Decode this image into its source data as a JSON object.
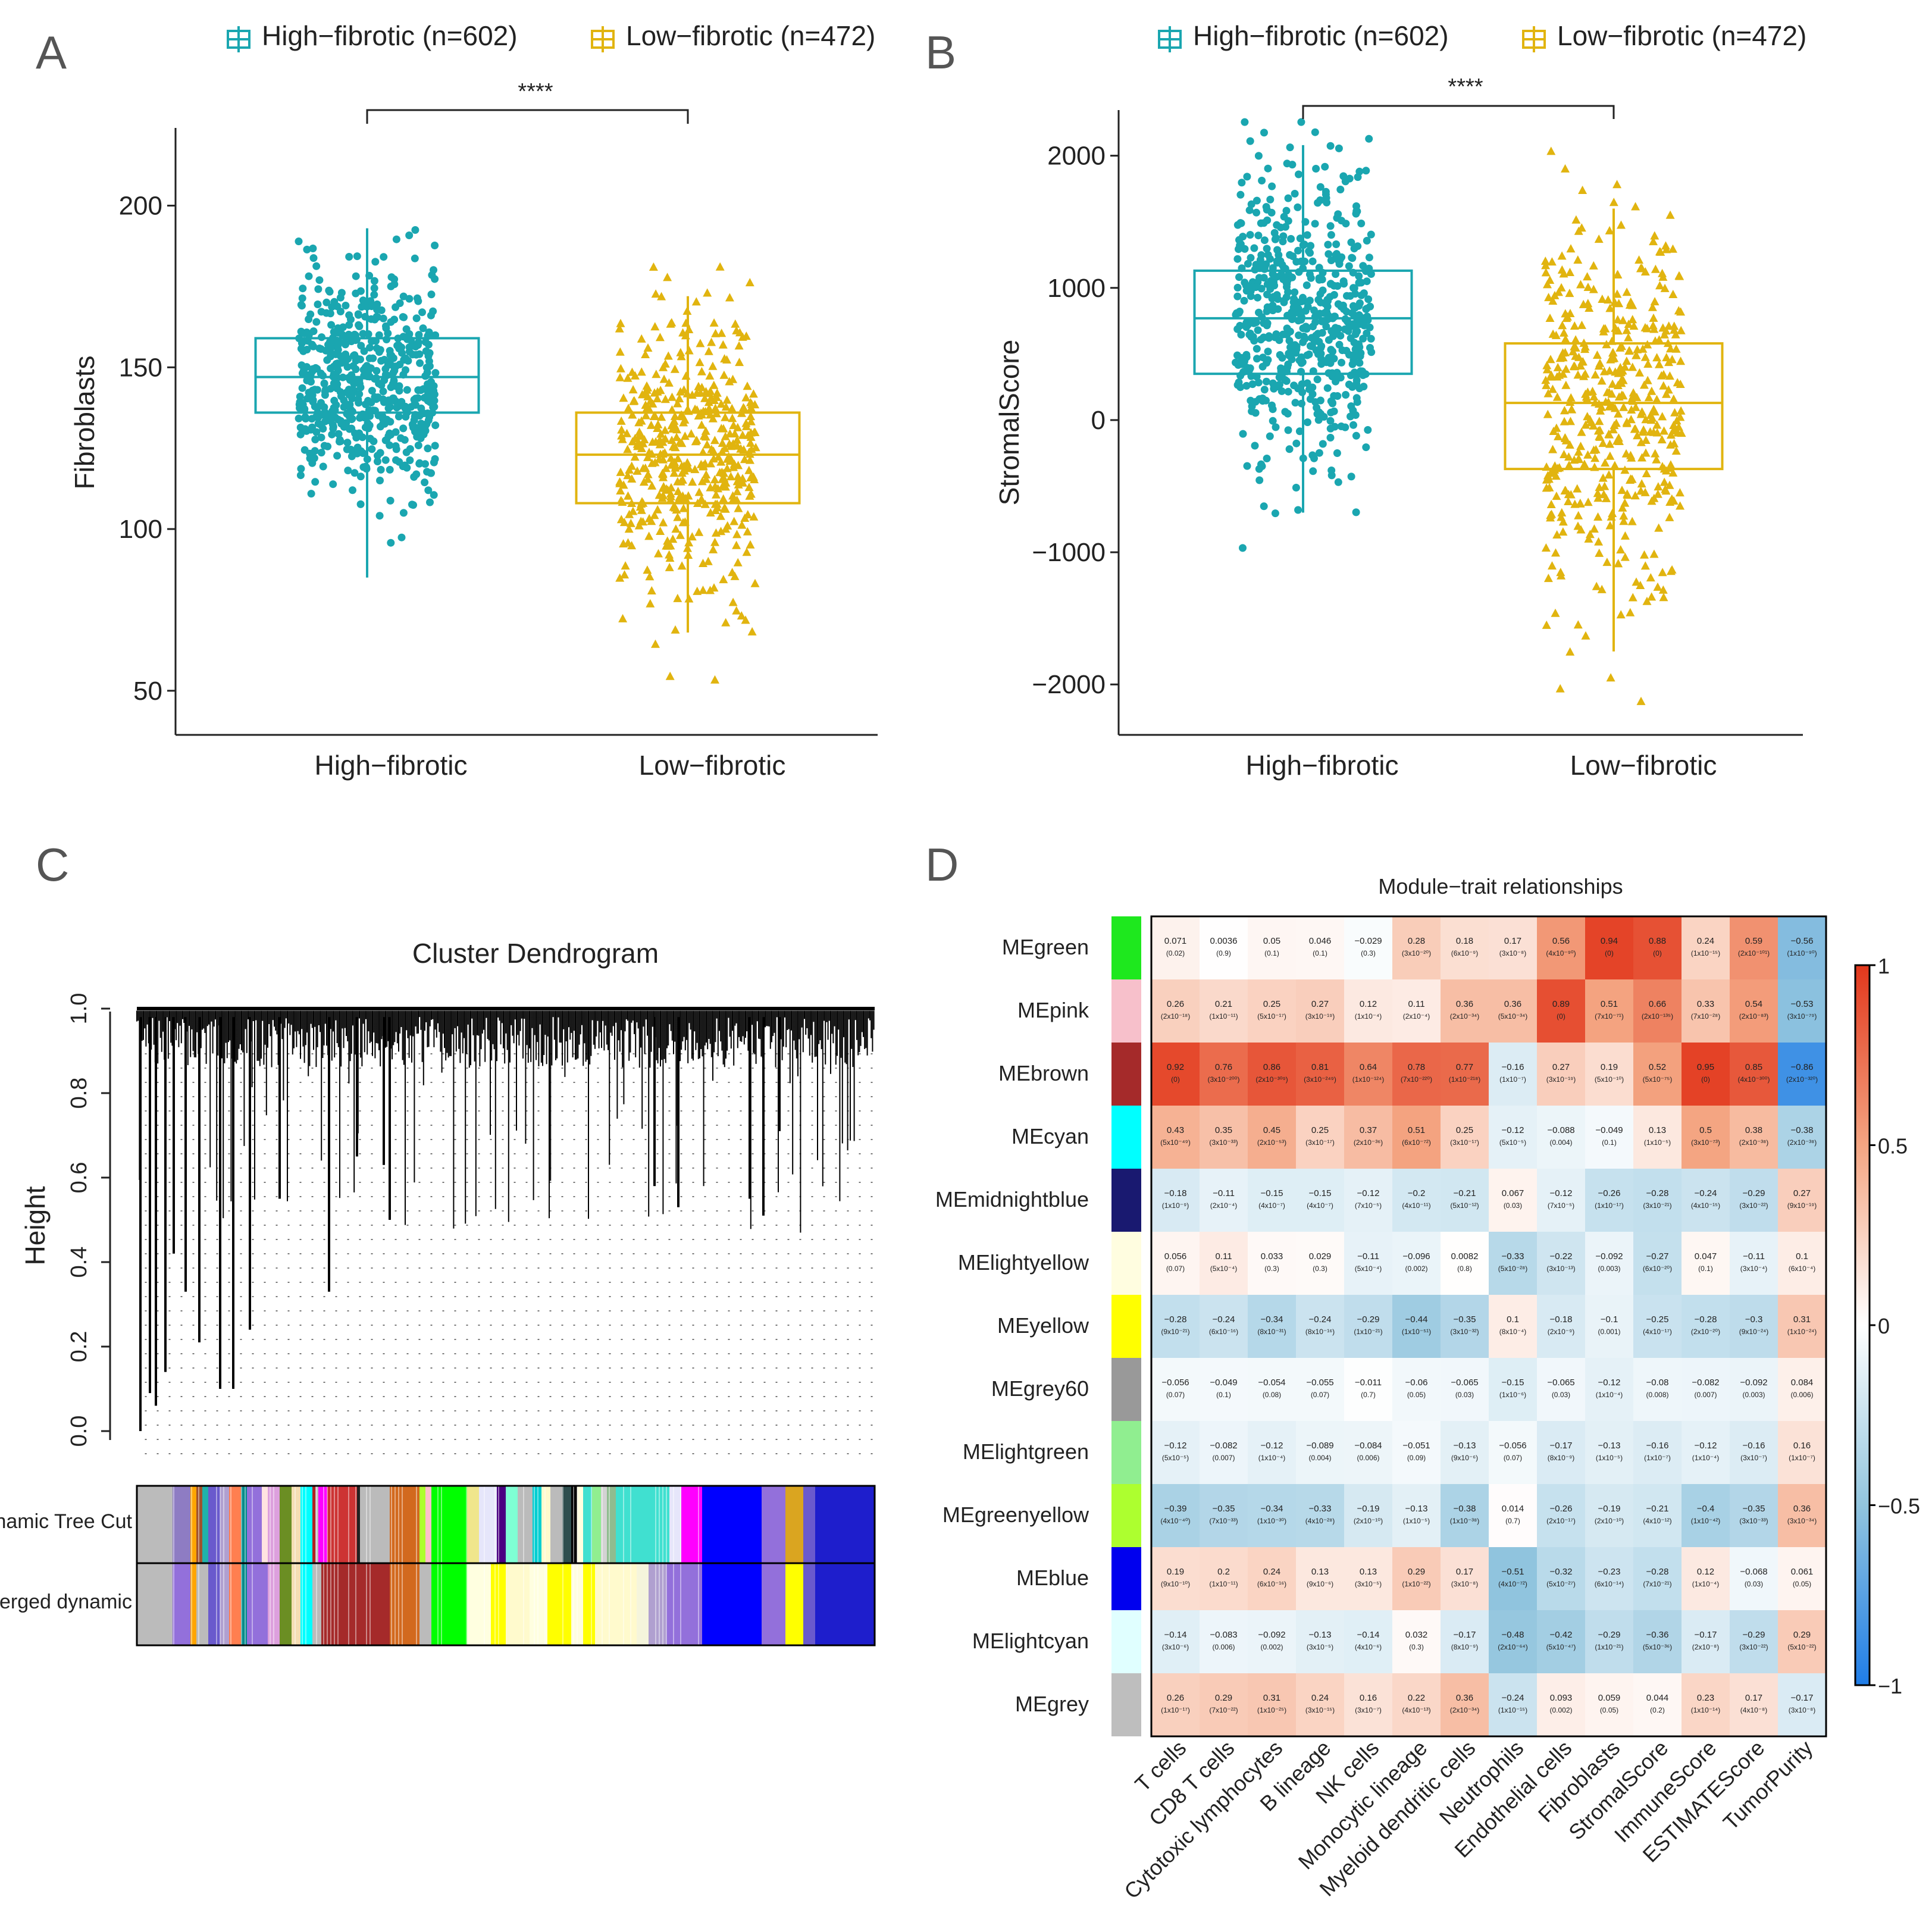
{
  "panel_letters": [
    "A",
    "B",
    "C",
    "D"
  ],
  "colors": {
    "high": "#1aa6b0",
    "low": "#e1b40f",
    "high_legend": "#1aa6b0",
    "low_legend": "#e1b40f"
  },
  "chart_data": [
    {
      "id": "A",
      "type": "box",
      "legend": [
        "High−fibrotic (n=602)",
        "Low−fibrotic (n=472)"
      ],
      "categories": [
        "High−fibrotic",
        "Low−fibrotic"
      ],
      "ylabel": "Fibroblasts",
      "ylim": [
        45,
        222
      ],
      "yticks": [
        50,
        100,
        150,
        200
      ],
      "significance": "****",
      "boxes": [
        {
          "name": "High−fibrotic",
          "min": 85,
          "q1": 136,
          "median": 147,
          "q3": 159,
          "max": 193,
          "n": 602
        },
        {
          "name": "Low−fibrotic",
          "min": 68,
          "q1": 108,
          "median": 123,
          "q3": 136,
          "max": 172,
          "n": 472
        }
      ]
    },
    {
      "id": "B",
      "type": "box",
      "legend": [
        "High−fibrotic (n=602)",
        "Low−fibrotic (n=472)"
      ],
      "categories": [
        "High−fibrotic",
        "Low−fibrotic"
      ],
      "ylabel": "StromalScore",
      "ylim": [
        -2260,
        2300
      ],
      "yticks": [
        -2000,
        -1000,
        0,
        1000,
        2000
      ],
      "ytick_labels": [
        "−2000",
        "−1000",
        "0",
        "1000",
        "2000"
      ],
      "significance": "****",
      "boxes": [
        {
          "name": "High−fibrotic",
          "min": -700,
          "q1": 350,
          "median": 770,
          "q3": 1130,
          "max": 2080,
          "n": 602
        },
        {
          "name": "Low−fibrotic",
          "min": -1750,
          "q1": -370,
          "median": 130,
          "q3": 580,
          "max": 1600,
          "n": 472
        }
      ]
    },
    {
      "id": "C",
      "type": "dendrogram",
      "title": "Cluster Dendrogram",
      "ylabel": "Height",
      "ylim": [
        0,
        1.0
      ],
      "yticks": [
        "0.0",
        "0.2",
        "0.4",
        "0.6",
        "0.8",
        "1.0"
      ],
      "color_rows": [
        "Dynamic Tree Cut",
        "Merged dynamic"
      ]
    },
    {
      "id": "D",
      "type": "heatmap",
      "title": "Module−trait relationships",
      "columns": [
        "T cells",
        "CD8 T cells",
        "Cytotoxic lymphocytes",
        "B lineage",
        "NK cells",
        "Monocytic lineage",
        "Myeloid dendritic cells",
        "Neutrophils",
        "Endothelial cells",
        "Fibroblasts",
        "StromalScore",
        "ImmuneScore",
        "ESTIMATEScore",
        "TumorPurity"
      ],
      "rows": [
        {
          "name": "MEgreen",
          "color": "#1ee81e",
          "values": [
            0.071,
            0.0036,
            0.05,
            0.046,
            -0.029,
            0.28,
            0.18,
            0.17,
            0.56,
            0.94,
            0.88,
            0.24,
            0.59,
            -0.56
          ],
          "labels": [
            "0.071",
            "0.0036",
            "0.05",
            "0.046",
            "−0.029",
            "0.28",
            "0.18",
            "0.17",
            "0.56",
            "0.94",
            "0.88",
            "0.24",
            "0.59",
            "−0.56"
          ],
          "pvals": [
            "(0.02)",
            "(0.9)",
            "(0.1)",
            "(0.1)",
            "(0.3)",
            "(3x10⁻²⁰)",
            "(6x10⁻⁹)",
            "(3x10⁻⁸)",
            "(4x10⁻⁹⁰)",
            "(0)",
            "(0)",
            "(1x10⁻¹⁵)",
            "(2x10⁻¹⁰¹)",
            "(1x10⁻⁹⁰)"
          ]
        },
        {
          "name": "MEpink",
          "color": "#f7c0cb",
          "values": [
            0.26,
            0.21,
            0.25,
            0.27,
            0.12,
            0.11,
            0.36,
            0.36,
            0.89,
            0.51,
            0.66,
            0.33,
            0.54,
            -0.53
          ],
          "labels": [
            "0.26",
            "0.21",
            "0.25",
            "0.27",
            "0.12",
            "0.11",
            "0.36",
            "0.36",
            "0.89",
            "0.51",
            "0.66",
            "0.33",
            "0.54",
            "−0.53"
          ],
          "pvals": [
            "(2x10⁻¹⁸)",
            "(1x10⁻¹¹)",
            "(5x10⁻¹⁷)",
            "(3x10⁻¹⁹)",
            "(1x10⁻⁴)",
            "(2x10⁻⁴)",
            "(2x10⁻³⁴)",
            "(5x10⁻³⁴)",
            "(0)",
            "(7x10⁻⁷¹)",
            "(2x10⁻¹³⁵)",
            "(7x10⁻²⁸)",
            "(2x10⁻⁸³)",
            "(3x10⁻⁷⁹)"
          ]
        },
        {
          "name": "MEbrown",
          "color": "#a52a2a",
          "values": [
            0.92,
            0.76,
            0.86,
            0.81,
            0.64,
            0.78,
            0.77,
            -0.16,
            0.27,
            0.19,
            0.52,
            0.95,
            0.85,
            -0.86
          ],
          "labels": [
            "0.92",
            "0.76",
            "0.86",
            "0.81",
            "0.64",
            "0.78",
            "0.77",
            "−0.16",
            "0.27",
            "0.19",
            "0.52",
            "0.95",
            "0.85",
            "−0.86"
          ],
          "pvals": [
            "(0)",
            "(3x10⁻²⁰⁰)",
            "(2x10⁻³⁰⁹)",
            "(3x10⁻²⁴⁹)",
            "(1x10⁻¹²⁴)",
            "(7x10⁻²²⁰)",
            "(1x10⁻²¹⁸)",
            "(1x10⁻⁷)",
            "(3x10⁻¹⁹)",
            "(5x10⁻¹⁰)",
            "(5x10⁻⁷⁵)",
            "(0)",
            "(4x10⁻³⁰⁰)",
            "(2x10⁻³²⁰)"
          ]
        },
        {
          "name": "MEcyan",
          "color": "#00ffff",
          "values": [
            0.43,
            0.35,
            0.45,
            0.25,
            0.37,
            0.51,
            0.25,
            -0.12,
            -0.088,
            -0.049,
            0.13,
            0.5,
            0.38,
            -0.38
          ],
          "labels": [
            "0.43",
            "0.35",
            "0.45",
            "0.25",
            "0.37",
            "0.51",
            "0.25",
            "−0.12",
            "−0.088",
            "−0.049",
            "0.13",
            "0.5",
            "0.38",
            "−0.38"
          ],
          "pvals": [
            "(5x10⁻⁴⁹)",
            "(3x10⁻³³)",
            "(2x10⁻⁵³)",
            "(3x10⁻¹⁷)",
            "(2x10⁻³⁶)",
            "(6x10⁻⁷²)",
            "(3x10⁻¹⁷)",
            "(5x10⁻⁵)",
            "(0.004)",
            "(0.1)",
            "(1x10⁻⁵)",
            "(3x10⁻⁷³)",
            "(2x10⁻³⁸)",
            "(2x10⁻³⁸)"
          ]
        },
        {
          "name": "MEmidnightblue",
          "color": "#191970",
          "values": [
            -0.18,
            -0.11,
            -0.15,
            -0.15,
            -0.12,
            -0.2,
            -0.21,
            0.067,
            -0.12,
            -0.26,
            -0.28,
            -0.24,
            -0.29,
            0.27
          ],
          "labels": [
            "−0.18",
            "−0.11",
            "−0.15",
            "−0.15",
            "−0.12",
            "−0.2",
            "−0.21",
            "0.067",
            "−0.12",
            "−0.26",
            "−0.28",
            "−0.24",
            "−0.29",
            "0.27"
          ],
          "pvals": [
            "(1x10⁻⁹)",
            "(2x10⁻⁴)",
            "(4x10⁻⁷)",
            "(4x10⁻⁷)",
            "(7x10⁻⁵)",
            "(4x10⁻¹¹)",
            "(5x10⁻¹²)",
            "(0.03)",
            "(7x10⁻⁵)",
            "(1x10⁻¹⁷)",
            "(3x10⁻²¹)",
            "(4x10⁻¹⁵)",
            "(3x10⁻²²)",
            "(9x10⁻¹⁹)"
          ]
        },
        {
          "name": "MElightyellow",
          "color": "#fffde0",
          "values": [
            0.056,
            0.11,
            0.033,
            0.029,
            -0.11,
            -0.096,
            0.0082,
            -0.33,
            -0.22,
            -0.092,
            -0.27,
            0.047,
            -0.11,
            0.1
          ],
          "labels": [
            "0.056",
            "0.11",
            "0.033",
            "0.029",
            "−0.11",
            "−0.096",
            "0.0082",
            "−0.33",
            "−0.22",
            "−0.092",
            "−0.27",
            "0.047",
            "−0.11",
            "0.1"
          ],
          "pvals": [
            "(0.07)",
            "(5x10⁻⁴)",
            "(0.3)",
            "(0.3)",
            "(5x10⁻⁴)",
            "(0.002)",
            "(0.8)",
            "(5x10⁻²⁸)",
            "(3x10⁻¹³)",
            "(0.003)",
            "(6x10⁻²⁰)",
            "(0.1)",
            "(3x10⁻⁴)",
            "(6x10⁻⁴)"
          ]
        },
        {
          "name": "MEyellow",
          "color": "#ffff00",
          "values": [
            -0.28,
            -0.24,
            -0.34,
            -0.24,
            -0.29,
            -0.44,
            -0.35,
            0.1,
            -0.18,
            -0.1,
            -0.25,
            -0.28,
            -0.3,
            0.31
          ],
          "labels": [
            "−0.28",
            "−0.24",
            "−0.34",
            "−0.24",
            "−0.29",
            "−0.44",
            "−0.35",
            "0.1",
            "−0.18",
            "−0.1",
            "−0.25",
            "−0.28",
            "−0.3",
            "0.31"
          ],
          "pvals": [
            "(9x10⁻²¹)",
            "(6x10⁻¹⁶)",
            "(8x10⁻³¹)",
            "(8x10⁻¹⁶)",
            "(1x10⁻²¹)",
            "(1x10⁻⁵¹)",
            "(3x10⁻³²)",
            "(8x10⁻⁴)",
            "(2x10⁻⁹)",
            "(0.001)",
            "(4x10⁻¹⁷)",
            "(2x10⁻²⁰)",
            "(9x10⁻²⁴)",
            "(1x10⁻²⁴)"
          ]
        },
        {
          "name": "MEgrey60",
          "color": "#999999",
          "values": [
            -0.056,
            -0.049,
            -0.054,
            -0.055,
            -0.011,
            -0.06,
            -0.065,
            -0.15,
            -0.065,
            -0.12,
            -0.08,
            -0.082,
            -0.092,
            0.084
          ],
          "labels": [
            "−0.056",
            "−0.049",
            "−0.054",
            "−0.055",
            "−0.011",
            "−0.06",
            "−0.065",
            "−0.15",
            "−0.065",
            "−0.12",
            "−0.08",
            "−0.082",
            "−0.092",
            "0.084"
          ],
          "pvals": [
            "(0.07)",
            "(0.1)",
            "(0.08)",
            "(0.07)",
            "(0.7)",
            "(0.05)",
            "(0.03)",
            "(1x10⁻⁶)",
            "(0.03)",
            "(1x10⁻⁴)",
            "(0.008)",
            "(0.007)",
            "(0.003)",
            "(0.006)"
          ]
        },
        {
          "name": "MElightgreen",
          "color": "#90ee90",
          "values": [
            -0.12,
            -0.082,
            -0.12,
            -0.089,
            -0.084,
            -0.051,
            -0.13,
            -0.056,
            -0.17,
            -0.13,
            -0.16,
            -0.12,
            -0.16,
            0.16
          ],
          "labels": [
            "−0.12",
            "−0.082",
            "−0.12",
            "−0.089",
            "−0.084",
            "−0.051",
            "−0.13",
            "−0.056",
            "−0.17",
            "−0.13",
            "−0.16",
            "−0.12",
            "−0.16",
            "0.16"
          ],
          "pvals": [
            "(5x10⁻⁵)",
            "(0.007)",
            "(1x10⁻⁴)",
            "(0.004)",
            "(0.006)",
            "(0.09)",
            "(9x10⁻⁶)",
            "(0.07)",
            "(8x10⁻⁹)",
            "(1x10⁻⁵)",
            "(1x10⁻⁷)",
            "(1x10⁻⁴)",
            "(3x10⁻⁷)",
            "(1x10⁻⁷)"
          ]
        },
        {
          "name": "MEgreenyellow",
          "color": "#adff2f",
          "values": [
            -0.39,
            -0.35,
            -0.34,
            -0.33,
            -0.19,
            -0.13,
            -0.38,
            0.014,
            -0.26,
            -0.19,
            -0.21,
            -0.4,
            -0.35,
            0.36
          ],
          "labels": [
            "−0.39",
            "−0.35",
            "−0.34",
            "−0.33",
            "−0.19",
            "−0.13",
            "−0.38",
            "0.014",
            "−0.26",
            "−0.19",
            "−0.21",
            "−0.4",
            "−0.35",
            "0.36"
          ],
          "pvals": [
            "(4x10⁻⁴⁰)",
            "(7x10⁻³³)",
            "(1x10⁻³⁰)",
            "(4x10⁻²⁸)",
            "(2x10⁻¹⁰)",
            "(1x10⁻⁵)",
            "(1x10⁻³⁸)",
            "(0.7)",
            "(2x10⁻¹⁷)",
            "(2x10⁻¹⁰)",
            "(4x10⁻¹²)",
            "(1x10⁻⁴²)",
            "(3x10⁻³³)",
            "(3x10⁻³⁴)"
          ]
        },
        {
          "name": "MEblue",
          "color": "#0000ee",
          "values": [
            0.19,
            0.2,
            0.24,
            0.13,
            0.13,
            0.29,
            0.17,
            -0.51,
            -0.32,
            -0.23,
            -0.28,
            0.12,
            -0.068,
            0.061
          ],
          "labels": [
            "0.19",
            "0.2",
            "0.24",
            "0.13",
            "0.13",
            "0.29",
            "0.17",
            "−0.51",
            "−0.32",
            "−0.23",
            "−0.28",
            "0.12",
            "−0.068",
            "0.061"
          ],
          "pvals": [
            "(9x10⁻¹⁰)",
            "(1x10⁻¹¹)",
            "(6x10⁻¹⁶)",
            "(9x10⁻⁶)",
            "(3x10⁻⁵)",
            "(1x10⁻²²)",
            "(3x10⁻⁸)",
            "(4x10⁻⁷²)",
            "(5x10⁻²⁷)",
            "(6x10⁻¹⁴)",
            "(7x10⁻²¹)",
            "(1x10⁻⁴)",
            "(0.03)",
            "(0.05)"
          ]
        },
        {
          "name": "MElightcyan",
          "color": "#e0ffff",
          "values": [
            -0.14,
            -0.083,
            -0.092,
            -0.13,
            -0.14,
            0.032,
            -0.17,
            -0.48,
            -0.42,
            -0.29,
            -0.36,
            -0.17,
            -0.29,
            0.29
          ],
          "labels": [
            "−0.14",
            "−0.083",
            "−0.092",
            "−0.13",
            "−0.14",
            "0.032",
            "−0.17",
            "−0.48",
            "−0.42",
            "−0.29",
            "−0.36",
            "−0.17",
            "−0.29",
            "0.29"
          ],
          "pvals": [
            "(3x10⁻⁶)",
            "(0.006)",
            "(0.002)",
            "(3x10⁻⁵)",
            "(4x10⁻⁶)",
            "(0.3)",
            "(8x10⁻⁹)",
            "(2x10⁻⁶⁴)",
            "(5x10⁻⁴⁷)",
            "(1x10⁻²¹)",
            "(5x10⁻³⁶)",
            "(2x10⁻⁸)",
            "(3x10⁻²²)",
            "(5x10⁻²²)"
          ]
        },
        {
          "name": "MEgrey",
          "color": "#bebebe",
          "values": [
            0.26,
            0.29,
            0.31,
            0.24,
            0.16,
            0.22,
            0.36,
            -0.24,
            0.093,
            0.059,
            0.044,
            0.23,
            0.17,
            -0.17
          ],
          "labels": [
            "0.26",
            "0.29",
            "0.31",
            "0.24",
            "0.16",
            "0.22",
            "0.36",
            "−0.24",
            "0.093",
            "0.059",
            "0.044",
            "0.23",
            "0.17",
            "−0.17"
          ],
          "pvals": [
            "(1x10⁻¹⁷)",
            "(7x10⁻²²)",
            "(1x10⁻²⁵)",
            "(3x10⁻¹⁵)",
            "(3x10⁻⁷)",
            "(4x10⁻¹³)",
            "(2x10⁻³⁴)",
            "(1x10⁻¹⁵)",
            "(0.002)",
            "(0.05)",
            "(0.2)",
            "(1x10⁻¹⁴)",
            "(4x10⁻⁸)",
            "(3x10⁻⁸)"
          ]
        }
      ],
      "colorbar": {
        "range": [
          -1,
          1
        ],
        "ticks": [
          1,
          0.5,
          0,
          -0.5,
          -1
        ],
        "tick_labels": [
          "1",
          "0.5",
          "0",
          "−0.5",
          "−1"
        ]
      }
    }
  ]
}
